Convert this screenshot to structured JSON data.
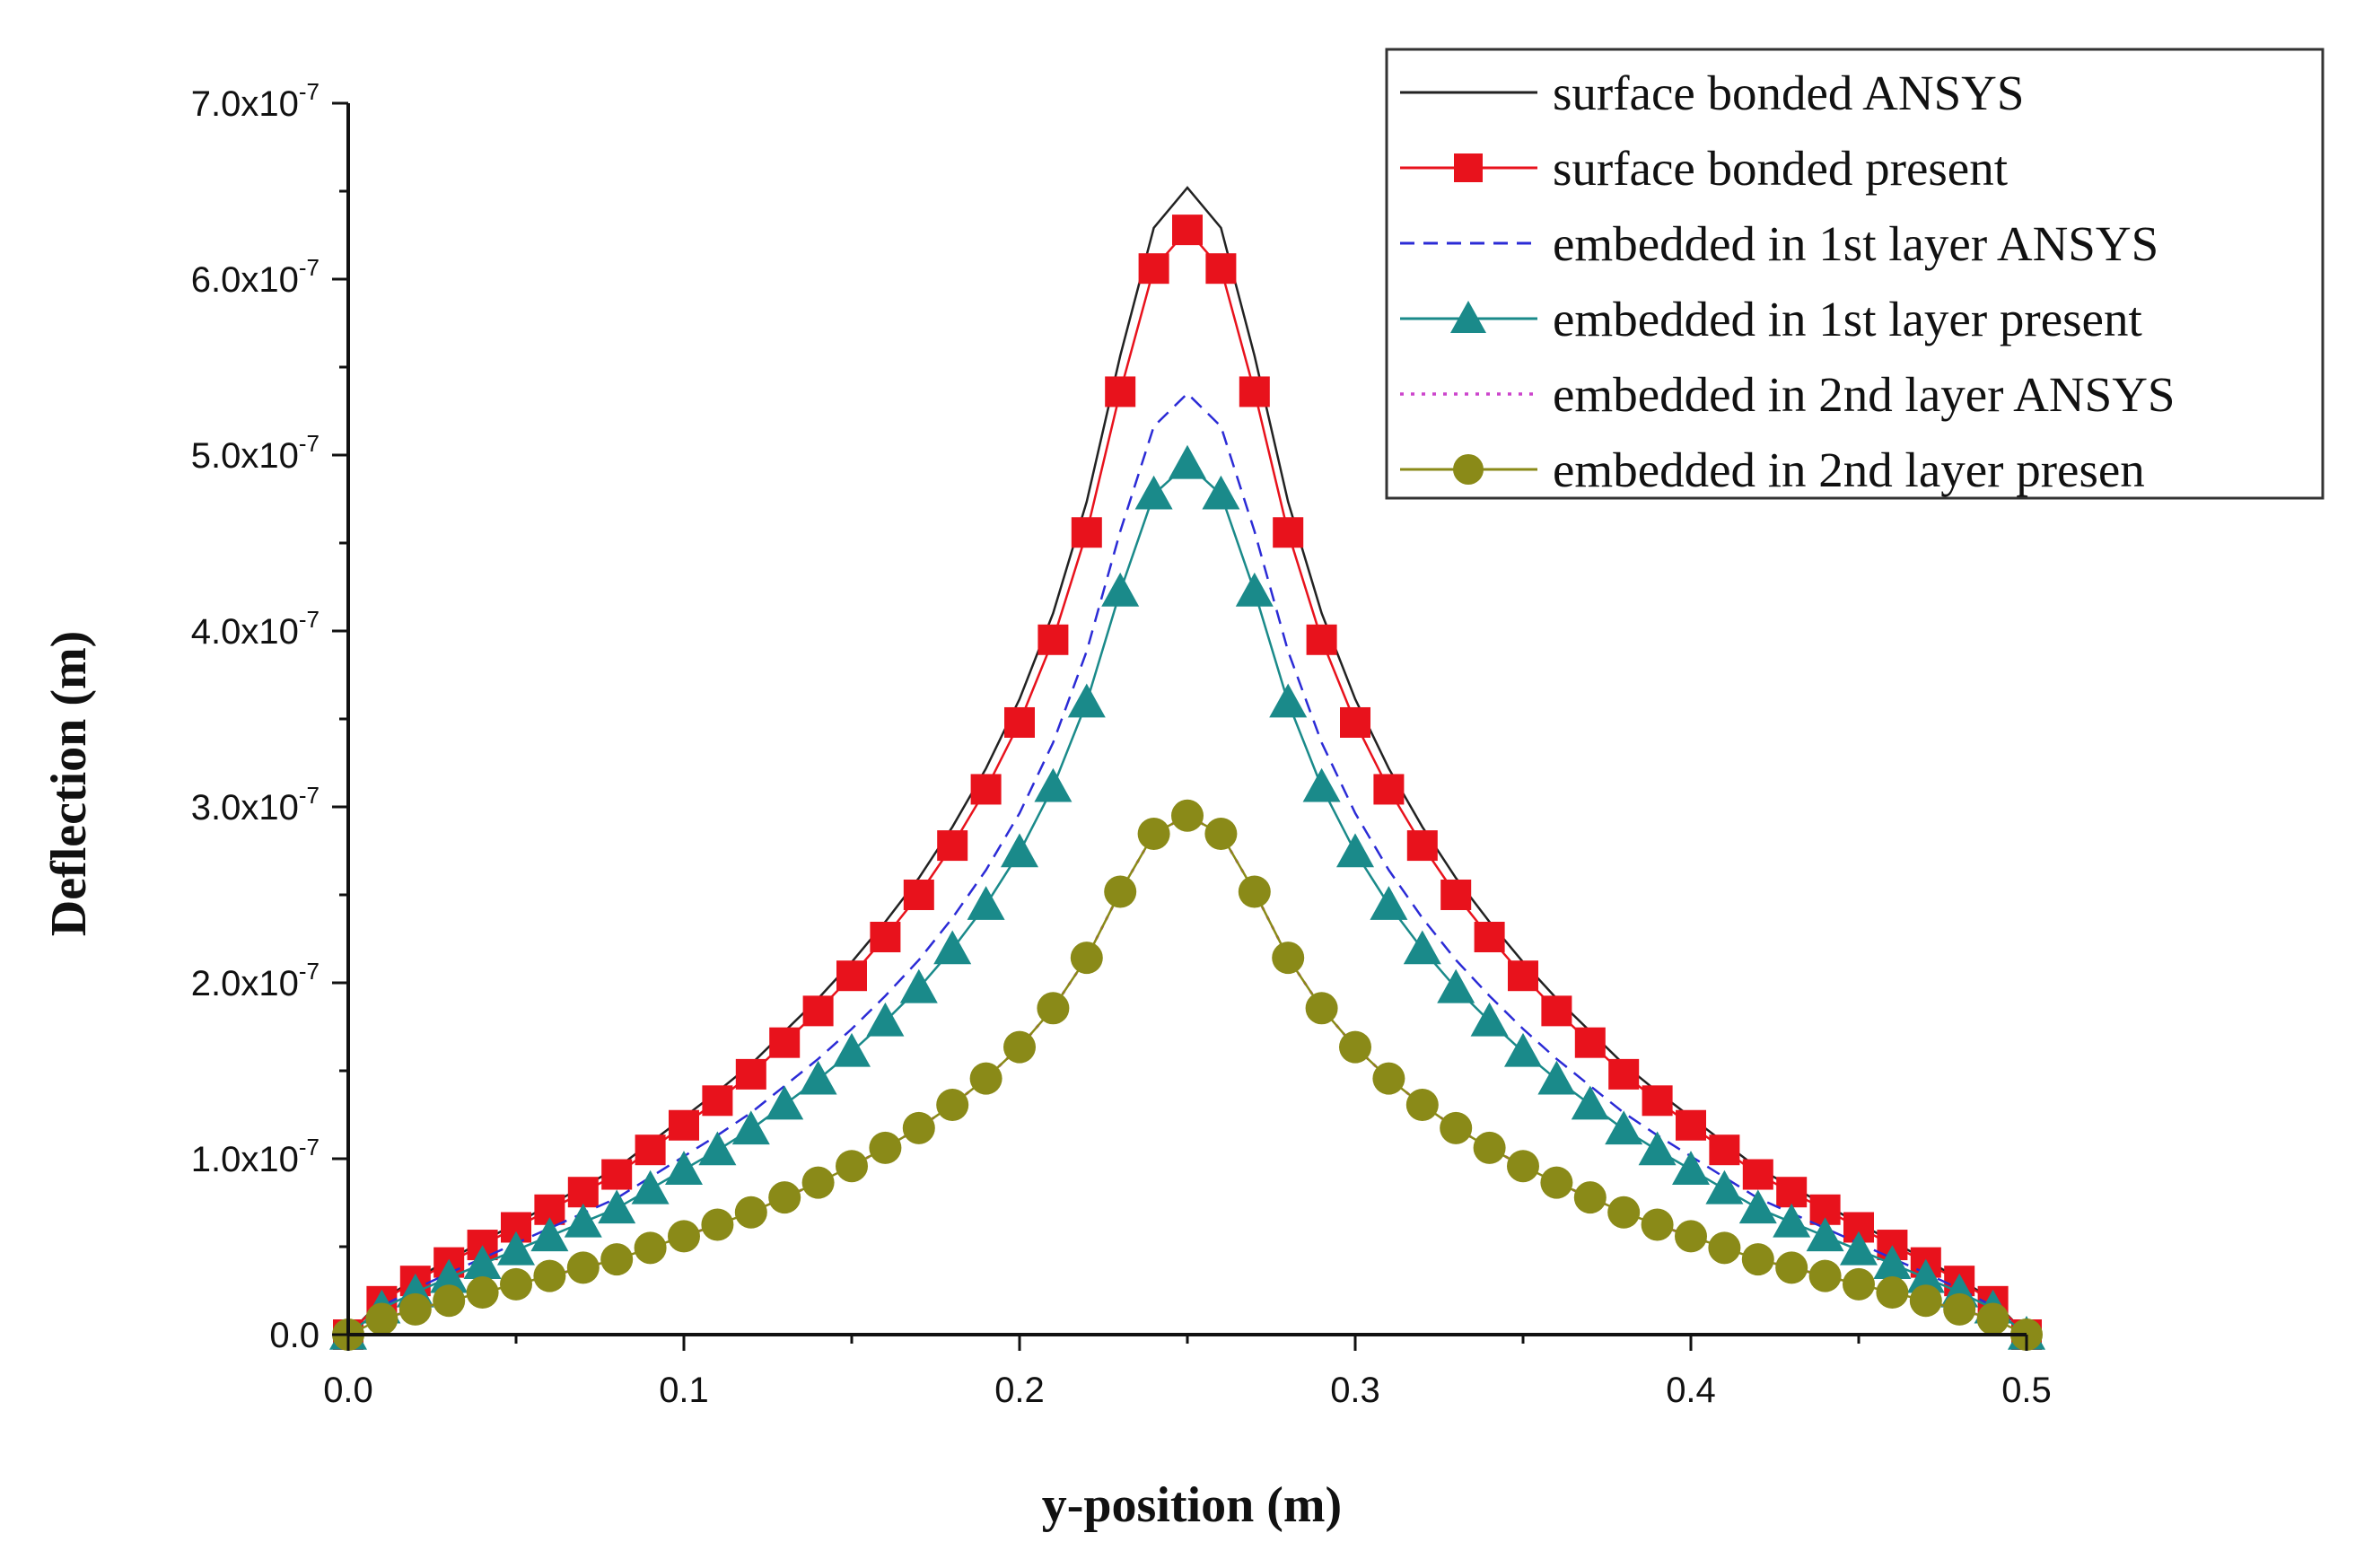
{
  "chart_data": {
    "type": "line",
    "title": "",
    "xlabel": "y-position (m)",
    "ylabel": "Deflection (m)",
    "xlim": [
      0.0,
      0.5
    ],
    "ylim": [
      0.0,
      7e-07
    ],
    "x_ticks": [
      0.0,
      0.1,
      0.2,
      0.3,
      0.4,
      0.5
    ],
    "x_tick_labels": [
      "0.0",
      "0.1",
      "0.2",
      "0.3",
      "0.4",
      "0.5"
    ],
    "y_ticks": [
      0.0,
      1e-07,
      2e-07,
      3e-07,
      4e-07,
      5e-07,
      6e-07,
      7e-07
    ],
    "y_tick_labels": [
      {
        "mantissa": "0.0",
        "exp": ""
      },
      {
        "mantissa": "1.0x10",
        "exp": "-7"
      },
      {
        "mantissa": "2.0x10",
        "exp": "-7"
      },
      {
        "mantissa": "3.0x10",
        "exp": "-7"
      },
      {
        "mantissa": "4.0x10",
        "exp": "-7"
      },
      {
        "mantissa": "5.0x10",
        "exp": "-7"
      },
      {
        "mantissa": "6.0x10",
        "exp": "-7"
      },
      {
        "mantissa": "7.0x10",
        "exp": "-7"
      }
    ],
    "grid": false,
    "legend_position": "top-right",
    "series": [
      {
        "name": "surface bonded ANSYS",
        "peak": 6.52e-07,
        "style": "line-solid",
        "color": "#222222",
        "marker": "none"
      },
      {
        "name": "surface bonded present",
        "peak": 6.28e-07,
        "style": "line-solid",
        "color": "#e8121c",
        "marker": "square"
      },
      {
        "name": "embedded in 1st layer ANSYS",
        "peak": 5.35e-07,
        "style": "line-dashed",
        "color": "#2b2bd6",
        "marker": "none"
      },
      {
        "name": "embedded in 1st layer present",
        "peak": 4.95e-07,
        "style": "line-solid",
        "color": "#1a8a8a",
        "marker": "triangle"
      },
      {
        "name": "embedded in 2nd layer ANSYS",
        "peak": 2.95e-07,
        "style": "line-dotted",
        "color": "#cc44cc",
        "marker": "none"
      },
      {
        "name": "embedded in 2nd layer presen",
        "peak": 2.95e-07,
        "style": "line-solid",
        "color": "#8a8a18",
        "marker": "circle"
      }
    ],
    "sample_x": [
      0.0,
      0.01,
      0.02,
      0.03,
      0.04,
      0.05,
      0.06,
      0.07,
      0.08,
      0.09,
      0.1,
      0.11,
      0.12,
      0.13,
      0.14,
      0.15,
      0.16,
      0.17,
      0.18,
      0.19,
      0.2,
      0.21,
      0.22,
      0.23,
      0.24,
      0.25,
      0.26,
      0.27,
      0.28,
      0.29,
      0.3,
      0.31,
      0.32,
      0.33,
      0.34,
      0.35,
      0.36,
      0.37,
      0.38,
      0.39,
      0.4,
      0.41,
      0.42,
      0.43,
      0.44,
      0.45,
      0.46,
      0.47,
      0.48,
      0.49,
      0.5
    ],
    "shape_profile_half": [
      0.0,
      0.0302,
      0.0486,
      0.0653,
      0.0812,
      0.0971,
      0.1131,
      0.129,
      0.145,
      0.1672,
      0.1895,
      0.2118,
      0.2357,
      0.2643,
      0.293,
      0.3248,
      0.3599,
      0.3981,
      0.4427,
      0.4936,
      0.5541,
      0.629,
      0.7261,
      0.8535,
      0.965,
      1.0
    ]
  }
}
